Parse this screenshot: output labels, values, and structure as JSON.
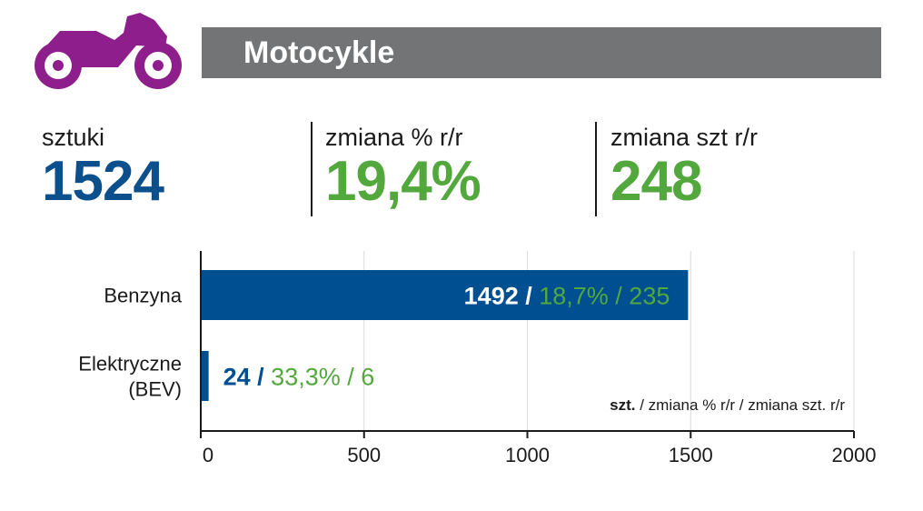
{
  "header": {
    "icon": "motorcycle-icon",
    "icon_color": "#8e1e8c",
    "title": "Motocykle"
  },
  "stats": [
    {
      "label": "sztuki",
      "value": "1524",
      "color": "#0b4f8c"
    },
    {
      "label": "zmiana % r/r",
      "value": "19,4%",
      "color": "#52a83d"
    },
    {
      "label": "zmiana szt r/r",
      "value": "248",
      "color": "#52a83d"
    }
  ],
  "chart_data": {
    "type": "bar",
    "orientation": "horizontal",
    "categories": [
      "Benzyna",
      "Elektryczne (BEV)"
    ],
    "category_lines": [
      [
        "Benzyna"
      ],
      [
        "Elektryczne",
        "(BEV)"
      ]
    ],
    "values": [
      1492,
      24
    ],
    "data_labels": [
      {
        "count": "1492 /",
        "rest": " 18,7% / 235"
      },
      {
        "count": "24 /",
        "rest": " 33,3% / 6"
      }
    ],
    "xlim": [
      0,
      2000
    ],
    "x_ticks": [
      0,
      500,
      1000,
      1500,
      2000
    ],
    "grid": true,
    "legend_note": {
      "bold": "szt.",
      "rest": " / zmiana % r/r / zmiana szt. r/r"
    },
    "colors": {
      "bar": "#004f91",
      "count": "#004f91",
      "change": "#52a83d",
      "label_on_bar": "#ffffff",
      "grid": "#d9d9d9"
    }
  }
}
